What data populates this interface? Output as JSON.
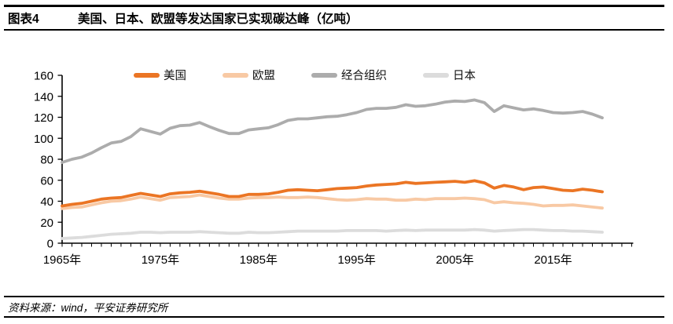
{
  "header": {
    "figure_label": "图表4",
    "title": "美国、日本、欧盟等发达国家已实现碳达峰（亿吨）"
  },
  "footer": {
    "source": "资料来源：wind，平安证券研究所"
  },
  "colors": {
    "us_orange": "#EB7524",
    "eu_peach": "#F8C9A4",
    "oecd_gray": "#ACACAC",
    "japan_lightgray": "#DCDCDC",
    "axis_black": "#000000"
  },
  "chart_data": {
    "type": "line",
    "title": "美国、日本、欧盟等发达国家已实现碳达峰（亿吨）",
    "unit": "亿吨",
    "grid": false,
    "legend_position": "top",
    "ylim": [
      0,
      160
    ],
    "y_ticks": [
      0,
      20,
      40,
      60,
      80,
      100,
      120,
      140,
      160
    ],
    "x_tick_labels": [
      "1965年",
      "1975年",
      "1985年",
      "1995年",
      "2005年",
      "2015年"
    ],
    "x_tick_years": [
      1965,
      1975,
      1985,
      1995,
      2005,
      2015
    ],
    "x_axis_end_year": 2023,
    "years": [
      1965,
      1966,
      1967,
      1968,
      1969,
      1970,
      1971,
      1972,
      1973,
      1974,
      1975,
      1976,
      1977,
      1978,
      1979,
      1980,
      1981,
      1982,
      1983,
      1984,
      1985,
      1986,
      1987,
      1988,
      1989,
      1990,
      1991,
      1992,
      1993,
      1994,
      1995,
      1996,
      1997,
      1998,
      1999,
      2000,
      2001,
      2002,
      2003,
      2004,
      2005,
      2006,
      2007,
      2008,
      2009,
      2010,
      2011,
      2012,
      2013,
      2014,
      2015,
      2016,
      2017,
      2018,
      2019,
      2020
    ],
    "series": [
      {
        "name": "美国",
        "color": "#EB7524",
        "values": [
          35.5,
          37,
          38,
          40,
          42,
          43,
          43.5,
          45.5,
          47.5,
          46,
          44.5,
          47,
          48,
          48.5,
          49.5,
          48,
          46.5,
          44.5,
          44.5,
          46.5,
          46.5,
          47,
          48.5,
          50.5,
          51,
          50.5,
          50,
          51,
          52,
          52.5,
          53,
          54.5,
          55.5,
          56,
          56.5,
          58,
          57,
          57.5,
          58,
          58.5,
          59,
          58,
          59.5,
          57.5,
          52.5,
          55,
          53.5,
          51,
          53,
          53.5,
          52,
          50.5,
          50,
          51.5,
          50.5,
          49
        ]
      },
      {
        "name": "欧盟",
        "color": "#F8C9A4",
        "values": [
          33,
          34,
          34.5,
          36.5,
          38.5,
          40,
          40.5,
          42,
          44,
          42.5,
          41,
          43.5,
          44,
          44.5,
          46,
          44.5,
          43,
          42,
          42,
          43,
          43.5,
          43.5,
          44,
          43.5,
          43.5,
          44,
          43.5,
          42.5,
          41.5,
          41,
          41.5,
          42.5,
          42,
          42,
          41,
          41,
          42,
          41.5,
          42.5,
          42.5,
          42.5,
          43,
          42.5,
          41.5,
          38.5,
          39.5,
          38.5,
          38,
          37,
          35.5,
          36,
          36,
          36.5,
          35.5,
          34.5,
          33.5
        ]
      },
      {
        "name": "经合组织",
        "color": "#ACACAC",
        "values": [
          77,
          80,
          82,
          86,
          91,
          95.5,
          97,
          101.5,
          109,
          106.5,
          104,
          109.5,
          112,
          112.5,
          115,
          111,
          107.5,
          104.5,
          104.5,
          108,
          109,
          110,
          113,
          117,
          118.5,
          118.5,
          119.5,
          120.5,
          121,
          122.5,
          124.5,
          127.5,
          128.5,
          128.5,
          129.5,
          132,
          130.5,
          131,
          132.5,
          134.5,
          135.5,
          135,
          136.5,
          134,
          125.5,
          131,
          129,
          127,
          128,
          126.5,
          124.5,
          124,
          124.5,
          125.5,
          123,
          119.5
        ]
      },
      {
        "name": "日本",
        "color": "#DCDCDC",
        "values": [
          4.5,
          5,
          5.5,
          6.5,
          7.5,
          8.5,
          9,
          9.5,
          10.5,
          10.5,
          10,
          10.5,
          10.5,
          10.5,
          11,
          10.5,
          10,
          9.5,
          9.5,
          10.5,
          10,
          10,
          10.5,
          11,
          11.5,
          11.5,
          11.5,
          11.5,
          11.5,
          12,
          12,
          12,
          12,
          11.5,
          12,
          12.5,
          12,
          12.5,
          12.5,
          12.5,
          12.5,
          12.5,
          13,
          12.5,
          11.5,
          12,
          12.5,
          13,
          13,
          12.5,
          12,
          12,
          11.5,
          11.5,
          11,
          10.5
        ]
      }
    ]
  }
}
